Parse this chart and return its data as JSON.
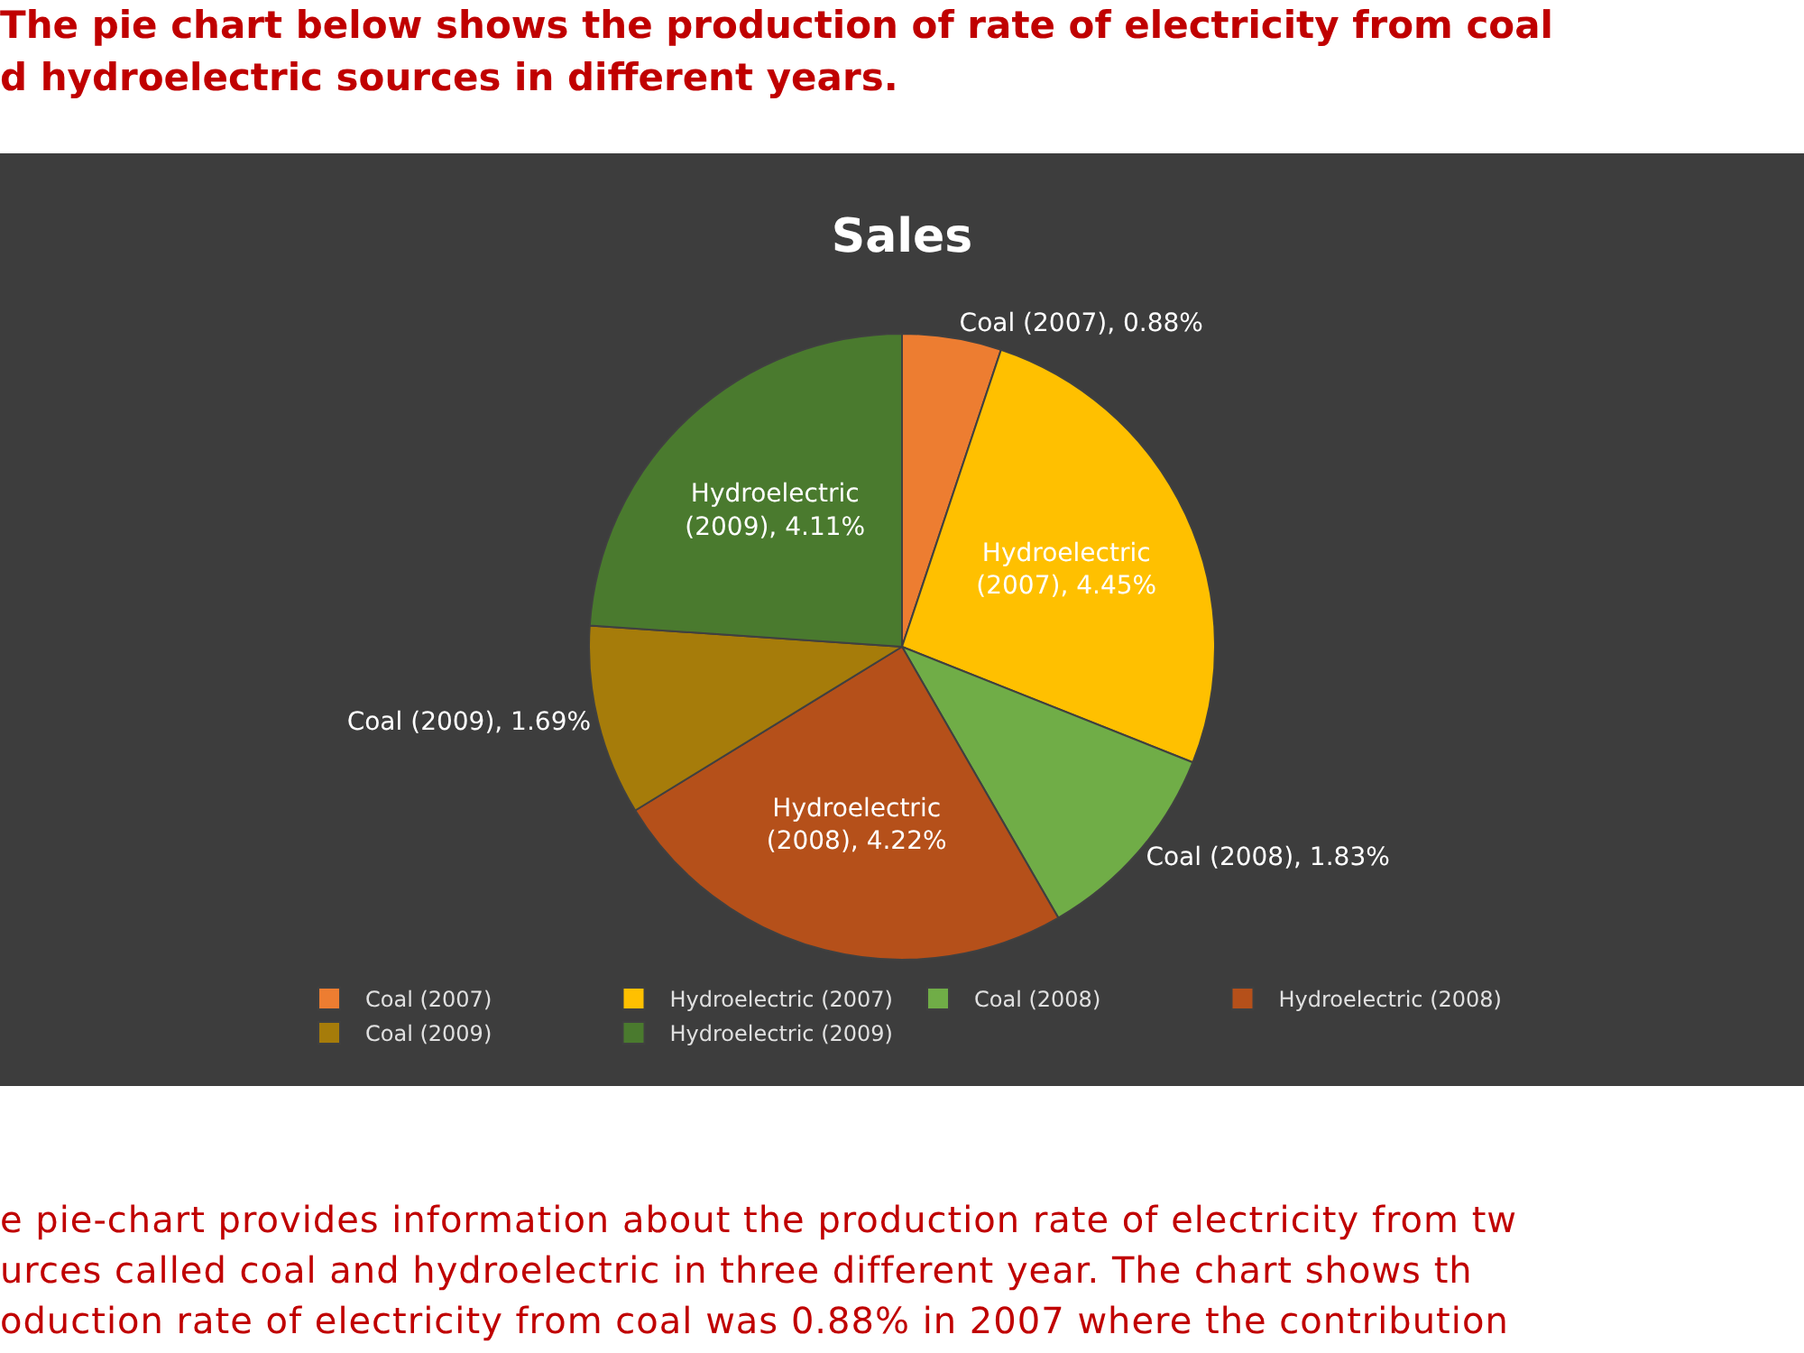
{
  "chart_data": {
    "type": "pie",
    "title": "Sales",
    "categories": [
      "Coal (2007)",
      "Hydroelectric (2007)",
      "Coal (2008)",
      "Hydroelectric (2008)",
      "Coal (2009)",
      "Hydroelectric (2009)"
    ],
    "values": [
      0.88,
      4.45,
      1.83,
      4.22,
      1.69,
      4.11
    ],
    "value_labels": [
      "Coal (2007), 0.88%",
      "Hydroelectric\n(2007), 4.45%",
      "Coal (2008), 1.83%",
      "Hydroelectric\n(2008), 4.22%",
      "Coal (2009), 1.69%",
      "Hydroelectric\n(2009), 4.11%"
    ],
    "colors": [
      "#ed7d31",
      "#ffc000",
      "#70ad47",
      "#b5501a",
      "#a67c0a",
      "#4a7a2e"
    ],
    "legend": "bottom",
    "annotations": [
      "The pie chart below shows the production of rate of electricity from coal\nd hydroelectric sources in different years.",
      "e pie-chart provides information about the production rate of electricity from tw\nurces called coal and hydroelectric in three different year. The chart shows th\noduction rate of electricity from coal was 0.88% in 2007 where the contribution"
    ]
  }
}
